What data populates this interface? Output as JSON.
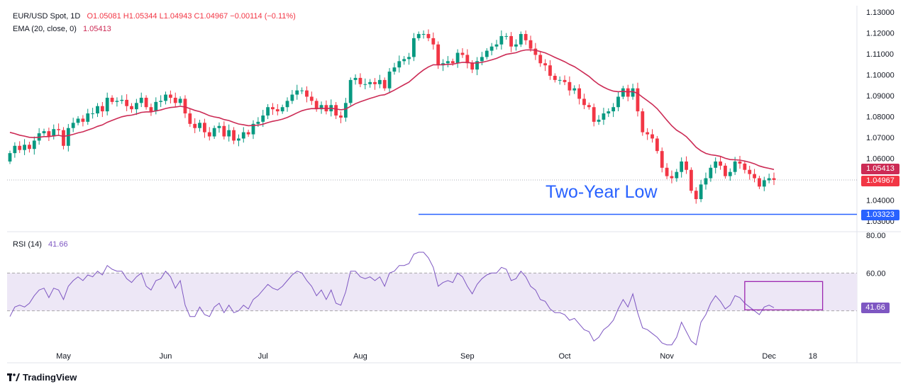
{
  "legend": {
    "symbol_line": "EUR/USD Spot, 1D",
    "ohlc": "O1.05081  H1.05344  L1.04943  C1.04967  −0.00114 (−0.11%)",
    "ema_label": "EMA (20, close, 0)",
    "ema_value": "1.05413",
    "rsi_label": "RSI (14)",
    "rsi_value": "41.66"
  },
  "annotation": "Two-Year Low",
  "tags": {
    "ema": "1.05413",
    "close": "1.04967",
    "low": "1.03323",
    "rsi": "41.66"
  },
  "brand": "TradingView",
  "colors": {
    "up": "#089981",
    "down": "#f23645",
    "ema": "#cc2b55",
    "rsi": "#7e57c2",
    "support": "#2962ff",
    "rsi_band": "#ede7f6"
  },
  "chart_data": [
    {
      "type": "candlestick",
      "title": "EUR/USD Spot, 1D",
      "ylim": [
        1.03,
        1.13
      ],
      "y_ticks": [
        "1.13000",
        "1.12000",
        "1.11000",
        "1.10000",
        "1.09000",
        "1.08000",
        "1.07000",
        "1.06000",
        "1.05000",
        "1.04000",
        "1.03000"
      ],
      "x_ticks": [
        "May",
        "Jun",
        "Jul",
        "Aug",
        "Sep",
        "Oct",
        "Nov",
        "Dec",
        "18"
      ],
      "support_level": 1.03323,
      "ema_last": 1.05413,
      "last_close": 1.04967,
      "series": [
        {
          "name": "EUR/USD",
          "close": [
            1.0625,
            1.066,
            1.064,
            1.0665,
            1.0645,
            1.0685,
            1.072,
            1.073,
            1.0705,
            1.074,
            1.0735,
            1.066,
            1.0745,
            1.077,
            1.079,
            1.0775,
            1.0815,
            1.0815,
            1.085,
            1.0825,
            1.089,
            1.087,
            1.0875,
            1.088,
            1.085,
            1.0835,
            1.0865,
            1.089,
            1.0845,
            1.0825,
            1.087,
            1.0875,
            1.0905,
            1.089,
            1.0865,
            1.0885,
            1.0815,
            1.0765,
            1.0745,
            1.077,
            1.0725,
            1.0705,
            1.0745,
            1.0755,
            1.0705,
            1.0735,
            1.0685,
            1.0695,
            1.0725,
            1.0715,
            1.0765,
            1.0775,
            1.0805,
            1.0845,
            1.0835,
            1.0825,
            1.0845,
            1.0875,
            1.0905,
            1.0925,
            1.0925,
            1.0895,
            1.0875,
            1.0835,
            1.0855,
            1.0825,
            1.0855,
            1.0805,
            1.0795,
            1.0865,
            1.0975,
            1.0985,
            1.0955,
            1.0955,
            1.0965,
            1.0955,
            1.0975,
            1.0935,
            1.1015,
            1.1035,
            1.1065,
            1.1075,
            1.1085,
            1.1175,
            1.1195,
            1.1195,
            1.1175,
            1.1145,
            1.1045,
            1.1055,
            1.1065,
            1.1055,
            1.1105,
            1.1095,
            1.1055,
            1.1025,
            1.1065,
            1.1085,
            1.1115,
            1.1135,
            1.1145,
            1.1185,
            1.1185,
            1.1135,
            1.1145,
            1.1195,
            1.1165,
            1.1125,
            1.1095,
            1.1055,
            1.1045,
            1.0995,
            1.0975,
            1.0975,
            1.0965,
            1.0925,
            1.0935,
            1.0885,
            1.0855,
            1.0845,
            1.0775,
            1.0785,
            1.0815,
            1.0825,
            1.0845,
            1.0895,
            1.0935,
            1.0895,
            1.0935,
            1.0825,
            1.0725,
            1.0715,
            1.0695,
            1.0635,
            1.0555,
            1.0515,
            1.0505,
            1.0535,
            1.0585,
            1.0545,
            1.0445,
            1.0405,
            1.0475,
            1.0505,
            1.0555,
            1.0585,
            1.0565,
            1.0515,
            1.0535,
            1.0585,
            1.0575,
            1.0545,
            1.0525,
            1.0505,
            1.0465,
            1.0495,
            1.0505,
            1.0497
          ]
        },
        {
          "name": "EMA (20, close, 0)",
          "last": 1.05413
        }
      ]
    },
    {
      "type": "line",
      "title": "RSI (14)",
      "ylim": [
        20,
        80
      ],
      "y_ticks": [
        "80.00",
        "60.00"
      ],
      "bands": [
        40,
        60
      ],
      "series": [
        {
          "name": "RSI (14)",
          "values": [
            37.0,
            42.0,
            43.0,
            42.0,
            44.0,
            48.0,
            51.0,
            52.0,
            47.0,
            52.0,
            51.0,
            46.0,
            53.0,
            56.0,
            58.0,
            56.0,
            59.0,
            58.0,
            61.0,
            59.0,
            64.0,
            62.0,
            61.0,
            61.0,
            57.0,
            55.0,
            58.0,
            60.0,
            53.0,
            51.0,
            56.0,
            57.0,
            61.0,
            58.0,
            52.0,
            56.0,
            43.0,
            37.0,
            37.0,
            42.0,
            38.0,
            37.0,
            42.0,
            44.0,
            39.0,
            43.0,
            39.0,
            40.0,
            43.0,
            41.0,
            46.0,
            48.0,
            51.0,
            54.0,
            52.0,
            51.0,
            53.0,
            56.0,
            59.0,
            61.0,
            60.0,
            56.0,
            53.0,
            48.0,
            51.0,
            46.0,
            51.0,
            44.0,
            43.0,
            50.0,
            61.0,
            61.0,
            58.0,
            57.0,
            58.0,
            56.0,
            58.0,
            53.0,
            60.0,
            61.0,
            64.0,
            64.0,
            65.0,
            70.0,
            71.0,
            71.0,
            68.0,
            63.0,
            53.0,
            55.0,
            56.0,
            55.0,
            60.0,
            58.0,
            53.0,
            49.0,
            54.0,
            57.0,
            59.0,
            60.0,
            60.0,
            63.0,
            62.0,
            56.0,
            57.0,
            61.0,
            58.0,
            53.0,
            51.0,
            46.0,
            45.0,
            41.0,
            39.0,
            39.0,
            38.0,
            35.0,
            36.0,
            33.0,
            30.0,
            29.0,
            24.0,
            26.0,
            30.0,
            32.0,
            35.0,
            41.0,
            46.0,
            42.0,
            49.0,
            39.0,
            31.0,
            30.0,
            28.0,
            26.0,
            23.0,
            22.0,
            22.0,
            26.0,
            34.0,
            29.0,
            24.0,
            22.0,
            34.0,
            38.0,
            44.0,
            48.0,
            45.0,
            41.0,
            43.0,
            48.0,
            47.0,
            44.0,
            42.0,
            40.0,
            38.0,
            42.0,
            43.0,
            41.66
          ]
        }
      ],
      "highlight_box": [
        40.5,
        55.5
      ]
    }
  ]
}
